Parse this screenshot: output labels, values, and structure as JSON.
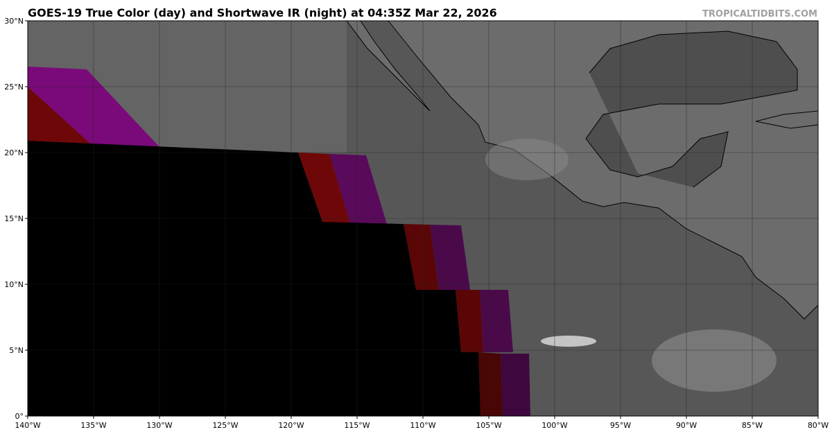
{
  "map": {
    "title": "GOES-19 True Color (day) and Shortwave IR (night) at 04:35Z Mar 22, 2026",
    "credit": "TROPICALTIDBITS.COM",
    "xlim": [
      -140,
      -80
    ],
    "ylim": [
      0,
      30
    ],
    "xticks": [
      {
        "value": -140,
        "label": "140°W"
      },
      {
        "value": -135,
        "label": "135°W"
      },
      {
        "value": -130,
        "label": "130°W"
      },
      {
        "value": -125,
        "label": "125°W"
      },
      {
        "value": -120,
        "label": "120°W"
      },
      {
        "value": -115,
        "label": "115°W"
      },
      {
        "value": -110,
        "label": "110°W"
      },
      {
        "value": -105,
        "label": "105°W"
      },
      {
        "value": -100,
        "label": "100°W"
      },
      {
        "value": -95,
        "label": "95°W"
      },
      {
        "value": -90,
        "label": "90°W"
      },
      {
        "value": -85,
        "label": "85°W"
      },
      {
        "value": -80,
        "label": "80°W"
      }
    ],
    "yticks": [
      {
        "value": 0,
        "label": "0°"
      },
      {
        "value": 5,
        "label": "5°N"
      },
      {
        "value": 10,
        "label": "10°N"
      },
      {
        "value": 15,
        "label": "15°N"
      },
      {
        "value": 20,
        "label": "20°N"
      },
      {
        "value": 25,
        "label": "25°N"
      },
      {
        "value": 30,
        "label": "30°N"
      }
    ]
  }
}
